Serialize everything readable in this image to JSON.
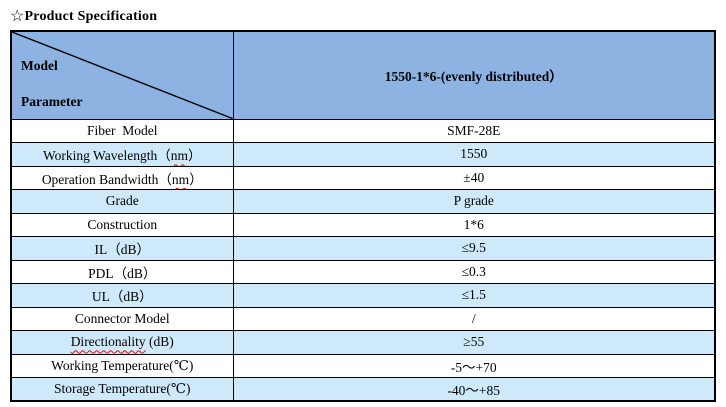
{
  "title": {
    "star": "☆",
    "text": "Product Specification"
  },
  "colors": {
    "header_bg": "#8DB3E2",
    "stripe_bg": "#CDE9FA",
    "border_color": "#000000",
    "squiggle_color": "#FF0000"
  },
  "table": {
    "header": {
      "left_top": "Model",
      "left_bottom": "Parameter",
      "right": "1550-1*6-(evenly distributed）"
    },
    "rows": [
      {
        "param": [
          {
            "t": "Fiber  Model"
          }
        ],
        "value": [
          {
            "t": "SMF-28E"
          }
        ]
      },
      {
        "param": [
          {
            "t": "Working Wavelength（"
          },
          {
            "t": "nm",
            "sq": true
          },
          {
            "t": "）"
          }
        ],
        "value": [
          {
            "t": "1550"
          }
        ]
      },
      {
        "param": [
          {
            "t": "Operation Bandwidth（"
          },
          {
            "t": "nm",
            "sq": true
          },
          {
            "t": "）"
          }
        ],
        "value": [
          {
            "t": "±40"
          }
        ]
      },
      {
        "param": [
          {
            "t": "Grade"
          }
        ],
        "value": [
          {
            "t": "P grade"
          }
        ]
      },
      {
        "param": [
          {
            "t": "Construction"
          }
        ],
        "value": [
          {
            "t": "1*6"
          }
        ]
      },
      {
        "param": [
          {
            "t": "IL（dB）"
          }
        ],
        "value": [
          {
            "t": "≤9.5"
          }
        ]
      },
      {
        "param": [
          {
            "t": "PDL（dB）"
          }
        ],
        "value": [
          {
            "t": "≤0.3"
          }
        ]
      },
      {
        "param": [
          {
            "t": "UL（dB）"
          }
        ],
        "value": [
          {
            "t": "≤1.5"
          }
        ]
      },
      {
        "param": [
          {
            "t": "Connector Model"
          }
        ],
        "value": [
          {
            "t": "/"
          }
        ]
      },
      {
        "param": [
          {
            "t": "Directionality",
            "sq": true
          },
          {
            "t": " (dB)"
          }
        ],
        "value": [
          {
            "t": "≥55"
          }
        ]
      },
      {
        "param": [
          {
            "t": "Working Temperature(℃)"
          }
        ],
        "value": [
          {
            "t": "-5～+70"
          }
        ]
      },
      {
        "param": [
          {
            "t": "Storage Temperature(℃)"
          }
        ],
        "value": [
          {
            "t": "-40～+85"
          }
        ]
      }
    ]
  }
}
